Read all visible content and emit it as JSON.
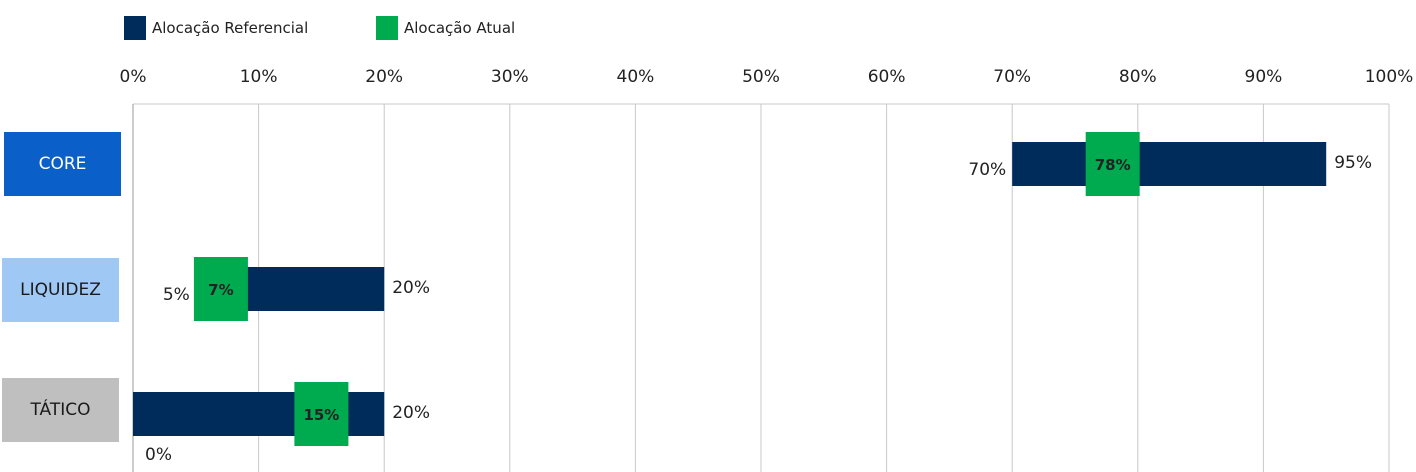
{
  "legend": {
    "reference": "Alocação Referencial",
    "current": "Alocação Atual"
  },
  "colors": {
    "reference": "#002c5c",
    "current": "#00aa4f",
    "core": "#0a5fc8",
    "liquidez": "#9fc8f5",
    "tatico": "#bfbfbf",
    "grid": "#c8c8c8"
  },
  "chart_data": {
    "type": "bar",
    "xlim": [
      0,
      100
    ],
    "ticks": [
      "0%",
      "10%",
      "20%",
      "30%",
      "40%",
      "50%",
      "60%",
      "70%",
      "80%",
      "90%",
      "100%"
    ],
    "categories": [
      {
        "name": "CORE",
        "min": 70,
        "max": 95,
        "current": 78,
        "min_label": "70%",
        "max_label": "95%",
        "current_label": "78%"
      },
      {
        "name": "LIQUIDEZ",
        "min": 5,
        "max": 20,
        "current": 7,
        "min_label": "5%",
        "max_label": "20%",
        "current_label": "7%"
      },
      {
        "name": "TÁTICO",
        "min": 0,
        "max": 20,
        "current": 15,
        "min_label": "0%",
        "max_label": "20%",
        "current_label": "15%"
      }
    ]
  }
}
